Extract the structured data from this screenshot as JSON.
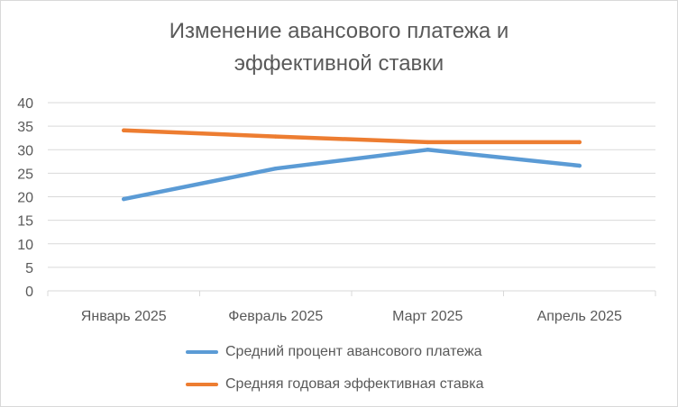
{
  "chart_data": {
    "type": "line",
    "title": "Изменение авансового платежа и\nэффективной ставки",
    "categories": [
      "Январь 2025",
      "Февраль 2025",
      "Март 2025",
      "Апрель 2025"
    ],
    "ylim": [
      0,
      40
    ],
    "yticks": [
      0,
      5,
      10,
      15,
      20,
      25,
      30,
      35,
      40
    ],
    "grid": true,
    "legend_position": "bottom",
    "series": [
      {
        "name": "Средний процент авансового платежа",
        "color": "#5b9bd5",
        "values": [
          19.5,
          26.0,
          30.0,
          26.6
        ]
      },
      {
        "name": "Средняя годовая эффективная ставка",
        "color": "#ed7d31",
        "values": [
          34.1,
          32.8,
          31.6,
          31.6
        ]
      }
    ]
  }
}
